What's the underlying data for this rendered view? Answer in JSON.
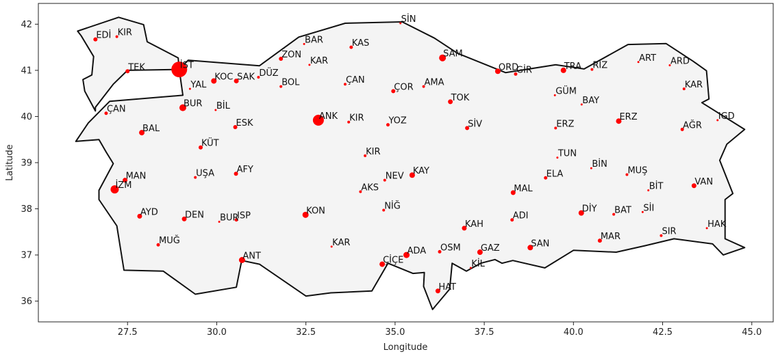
{
  "chart_data": {
    "type": "scatter",
    "title": "",
    "xlabel": "Longitude",
    "ylabel": "Latitude",
    "xlim": [
      25.0,
      45.6
    ],
    "ylim": [
      35.55,
      42.45
    ],
    "xticks": [
      "27.5",
      "30.0",
      "32.5",
      "35.0",
      "37.5",
      "40.0",
      "42.5",
      "45.0"
    ],
    "yticks": [
      "36",
      "37",
      "38",
      "39",
      "40",
      "41",
      "42"
    ],
    "grid": false,
    "colors": {
      "point": "#ff0000",
      "land_fill": "#f4f4f4",
      "border": "#111111"
    },
    "points": [
      {
        "label": "EDİ",
        "x": 26.6,
        "y": 41.67,
        "size": 6
      },
      {
        "label": "KIR",
        "x": 27.2,
        "y": 41.73,
        "size": 4
      },
      {
        "label": "TEK",
        "x": 27.5,
        "y": 40.98,
        "size": 6
      },
      {
        "label": "İST",
        "x": 28.95,
        "y": 41.02,
        "size": 23
      },
      {
        "label": "ÇAN",
        "x": 26.9,
        "y": 40.07,
        "size": 5
      },
      {
        "label": "BAL",
        "x": 27.9,
        "y": 39.65,
        "size": 8
      },
      {
        "label": "BUR",
        "x": 29.05,
        "y": 40.19,
        "size": 10
      },
      {
        "label": "YAL",
        "x": 29.25,
        "y": 40.6,
        "size": 3
      },
      {
        "label": "KOC",
        "x": 29.92,
        "y": 40.77,
        "size": 8
      },
      {
        "label": "SAK",
        "x": 30.55,
        "y": 40.77,
        "size": 7
      },
      {
        "label": "BİL",
        "x": 29.97,
        "y": 40.14,
        "size": 3
      },
      {
        "label": "DÜZ",
        "x": 31.17,
        "y": 40.85,
        "size": 4
      },
      {
        "label": "BOL",
        "x": 31.8,
        "y": 40.65,
        "size": 4
      },
      {
        "label": "ZON",
        "x": 31.8,
        "y": 41.25,
        "size": 6
      },
      {
        "label": "BAR",
        "x": 32.45,
        "y": 41.57,
        "size": 3
      },
      {
        "label": "KAR",
        "x": 32.6,
        "y": 41.12,
        "size": 3
      },
      {
        "label": "KAS",
        "x": 33.77,
        "y": 41.5,
        "size": 5
      },
      {
        "label": "ÇAN",
        "x": 33.6,
        "y": 40.7,
        "size": 4
      },
      {
        "label": "ESK",
        "x": 30.52,
        "y": 39.77,
        "size": 6
      },
      {
        "label": "KÜT",
        "x": 29.55,
        "y": 39.33,
        "size": 6
      },
      {
        "label": "ANK",
        "x": 32.85,
        "y": 39.92,
        "size": 16
      },
      {
        "label": "KIR",
        "x": 33.7,
        "y": 39.88,
        "size": 4
      },
      {
        "label": "ÇOR",
        "x": 34.95,
        "y": 40.55,
        "size": 6
      },
      {
        "label": "AMA",
        "x": 35.8,
        "y": 40.65,
        "size": 4
      },
      {
        "label": "SİN",
        "x": 35.15,
        "y": 42.02,
        "size": 3
      },
      {
        "label": "SAM",
        "x": 36.33,
        "y": 41.27,
        "size": 10
      },
      {
        "label": "TOK",
        "x": 36.55,
        "y": 40.32,
        "size": 7
      },
      {
        "label": "ORD",
        "x": 37.88,
        "y": 40.98,
        "size": 8
      },
      {
        "label": "GİR",
        "x": 38.38,
        "y": 40.92,
        "size": 5
      },
      {
        "label": "TRA",
        "x": 39.72,
        "y": 41.0,
        "size": 8
      },
      {
        "label": "RİZ",
        "x": 40.52,
        "y": 41.02,
        "size": 4
      },
      {
        "label": "ART",
        "x": 41.82,
        "y": 41.18,
        "size": 3
      },
      {
        "label": "ARD",
        "x": 42.7,
        "y": 41.11,
        "size": 3
      },
      {
        "label": "GÜM",
        "x": 39.48,
        "y": 40.46,
        "size": 3
      },
      {
        "label": "BAY",
        "x": 40.23,
        "y": 40.26,
        "size": 3
      },
      {
        "label": "KAR",
        "x": 43.1,
        "y": 40.6,
        "size": 4
      },
      {
        "label": "ERZ",
        "x": 41.27,
        "y": 39.9,
        "size": 8
      },
      {
        "label": "IGD",
        "x": 44.04,
        "y": 39.92,
        "size": 3
      },
      {
        "label": "ERZ",
        "x": 39.5,
        "y": 39.75,
        "size": 4
      },
      {
        "label": "AĞR",
        "x": 43.05,
        "y": 39.72,
        "size": 5
      },
      {
        "label": "YOZ",
        "x": 34.8,
        "y": 39.82,
        "size": 5
      },
      {
        "label": "SİV",
        "x": 37.02,
        "y": 39.75,
        "size": 6
      },
      {
        "label": "KIR",
        "x": 34.16,
        "y": 39.15,
        "size": 4
      },
      {
        "label": "TUN",
        "x": 39.55,
        "y": 39.11,
        "size": 2
      },
      {
        "label": "BİN",
        "x": 40.5,
        "y": 38.88,
        "size": 3
      },
      {
        "label": "MUŞ",
        "x": 41.5,
        "y": 38.74,
        "size": 4
      },
      {
        "label": "MAN",
        "x": 27.43,
        "y": 38.62,
        "size": 7
      },
      {
        "label": "İZM",
        "x": 27.14,
        "y": 38.42,
        "size": 12
      },
      {
        "label": "UŞA",
        "x": 29.4,
        "y": 38.68,
        "size": 4
      },
      {
        "label": "AFY",
        "x": 30.54,
        "y": 38.76,
        "size": 6
      },
      {
        "label": "AKS",
        "x": 34.03,
        "y": 38.37,
        "size": 4
      },
      {
        "label": "NEV",
        "x": 34.71,
        "y": 38.62,
        "size": 4
      },
      {
        "label": "KAY",
        "x": 35.48,
        "y": 38.73,
        "size": 8
      },
      {
        "label": "MAL",
        "x": 38.31,
        "y": 38.35,
        "size": 7
      },
      {
        "label": "ELA",
        "x": 39.22,
        "y": 38.67,
        "size": 5
      },
      {
        "label": "BİT",
        "x": 42.1,
        "y": 38.4,
        "size": 3
      },
      {
        "label": "VAN",
        "x": 43.38,
        "y": 38.5,
        "size": 7
      },
      {
        "label": "BAT",
        "x": 41.13,
        "y": 37.88,
        "size": 4
      },
      {
        "label": "SİI",
        "x": 41.94,
        "y": 37.93,
        "size": 3
      },
      {
        "label": "DİY",
        "x": 40.22,
        "y": 37.91,
        "size": 8
      },
      {
        "label": "AYD",
        "x": 27.84,
        "y": 37.84,
        "size": 7
      },
      {
        "label": "DEN",
        "x": 29.09,
        "y": 37.78,
        "size": 7
      },
      {
        "label": "ISP",
        "x": 30.55,
        "y": 37.76,
        "size": 5
      },
      {
        "label": "KON",
        "x": 32.49,
        "y": 37.87,
        "size": 9
      },
      {
        "label": "NİĞ",
        "x": 34.68,
        "y": 37.97,
        "size": 4
      },
      {
        "label": "KAH",
        "x": 36.94,
        "y": 37.58,
        "size": 7
      },
      {
        "label": "ADI",
        "x": 38.28,
        "y": 37.76,
        "size": 5
      },
      {
        "label": "BUR",
        "x": 30.07,
        "y": 37.72,
        "size": 3
      },
      {
        "label": "KAR",
        "x": 33.22,
        "y": 37.18,
        "size": 3
      },
      {
        "label": "SIR",
        "x": 42.46,
        "y": 37.42,
        "size": 4
      },
      {
        "label": "HAK",
        "x": 43.74,
        "y": 37.58,
        "size": 3
      },
      {
        "label": "MAR",
        "x": 40.74,
        "y": 37.31,
        "size": 6
      },
      {
        "label": "MUĞ",
        "x": 28.36,
        "y": 37.22,
        "size": 5
      },
      {
        "label": "ANT",
        "x": 30.71,
        "y": 36.89,
        "size": 9
      },
      {
        "label": "ÇİÇE",
        "x": 34.64,
        "y": 36.8,
        "size": 8
      },
      {
        "label": "ADA",
        "x": 35.32,
        "y": 37.0,
        "size": 9
      },
      {
        "label": "OSM",
        "x": 36.25,
        "y": 37.07,
        "size": 5
      },
      {
        "label": "GAZ",
        "x": 37.38,
        "y": 37.06,
        "size": 8
      },
      {
        "label": "KİL",
        "x": 37.12,
        "y": 36.72,
        "size": 3
      },
      {
        "label": "SAN",
        "x": 38.79,
        "y": 37.16,
        "size": 8
      },
      {
        "label": "HAT",
        "x": 36.2,
        "y": 36.22,
        "size": 7
      }
    ],
    "outline": [
      {
        "name": "thrace",
        "coords": [
          [
            26.1,
            41.85
          ],
          [
            27.25,
            42.15
          ],
          [
            27.95,
            41.99
          ],
          [
            28.05,
            41.62
          ],
          [
            28.92,
            41.27
          ],
          [
            28.95,
            41.02
          ],
          [
            27.5,
            41.0
          ],
          [
            27.1,
            40.7
          ],
          [
            26.6,
            40.2
          ],
          [
            26.6,
            40.12
          ],
          [
            26.3,
            40.55
          ],
          [
            26.25,
            40.8
          ],
          [
            26.5,
            40.9
          ],
          [
            26.55,
            41.3
          ],
          [
            26.2,
            41.75
          ],
          [
            26.1,
            41.85
          ]
        ]
      },
      {
        "name": "anatolia",
        "coords": [
          [
            29.2,
            41.22
          ],
          [
            31.2,
            41.1
          ],
          [
            32.3,
            41.72
          ],
          [
            33.6,
            42.02
          ],
          [
            35.2,
            42.05
          ],
          [
            36.1,
            41.7
          ],
          [
            36.75,
            41.37
          ],
          [
            38.1,
            40.95
          ],
          [
            39.5,
            41.12
          ],
          [
            40.3,
            41.03
          ],
          [
            41.53,
            41.56
          ],
          [
            42.6,
            41.58
          ],
          [
            43.35,
            41.2
          ],
          [
            43.73,
            40.99
          ],
          [
            43.8,
            40.38
          ],
          [
            43.6,
            40.3
          ],
          [
            44.8,
            39.72
          ],
          [
            44.3,
            39.4
          ],
          [
            44.1,
            39.05
          ],
          [
            44.47,
            38.33
          ],
          [
            44.25,
            38.2
          ],
          [
            44.25,
            37.35
          ],
          [
            44.8,
            37.16
          ],
          [
            44.2,
            37.0
          ],
          [
            43.9,
            37.24
          ],
          [
            42.82,
            37.35
          ],
          [
            42.0,
            37.2
          ],
          [
            41.2,
            37.06
          ],
          [
            40.0,
            37.1
          ],
          [
            39.2,
            36.72
          ],
          [
            38.3,
            36.88
          ],
          [
            38.0,
            36.82
          ],
          [
            37.8,
            36.9
          ],
          [
            37.4,
            36.82
          ],
          [
            37.0,
            36.65
          ],
          [
            36.6,
            36.82
          ],
          [
            36.53,
            36.26
          ],
          [
            36.05,
            35.82
          ],
          [
            35.8,
            36.32
          ],
          [
            35.82,
            36.62
          ],
          [
            35.5,
            36.6
          ],
          [
            34.8,
            36.82
          ],
          [
            34.35,
            36.22
          ],
          [
            33.2,
            36.18
          ],
          [
            32.5,
            36.11
          ],
          [
            31.2,
            36.8
          ],
          [
            30.7,
            36.88
          ],
          [
            30.55,
            36.3
          ],
          [
            29.4,
            36.15
          ],
          [
            28.5,
            36.65
          ],
          [
            27.4,
            36.67
          ],
          [
            27.2,
            37.63
          ],
          [
            26.7,
            38.2
          ],
          [
            26.7,
            38.4
          ],
          [
            27.1,
            38.98
          ],
          [
            26.9,
            39.23
          ],
          [
            26.7,
            39.5
          ],
          [
            26.05,
            39.46
          ],
          [
            26.4,
            39.86
          ],
          [
            27.0,
            40.33
          ],
          [
            29.05,
            40.46
          ],
          [
            28.95,
            41.02
          ],
          [
            29.2,
            41.22
          ]
        ]
      }
    ]
  }
}
